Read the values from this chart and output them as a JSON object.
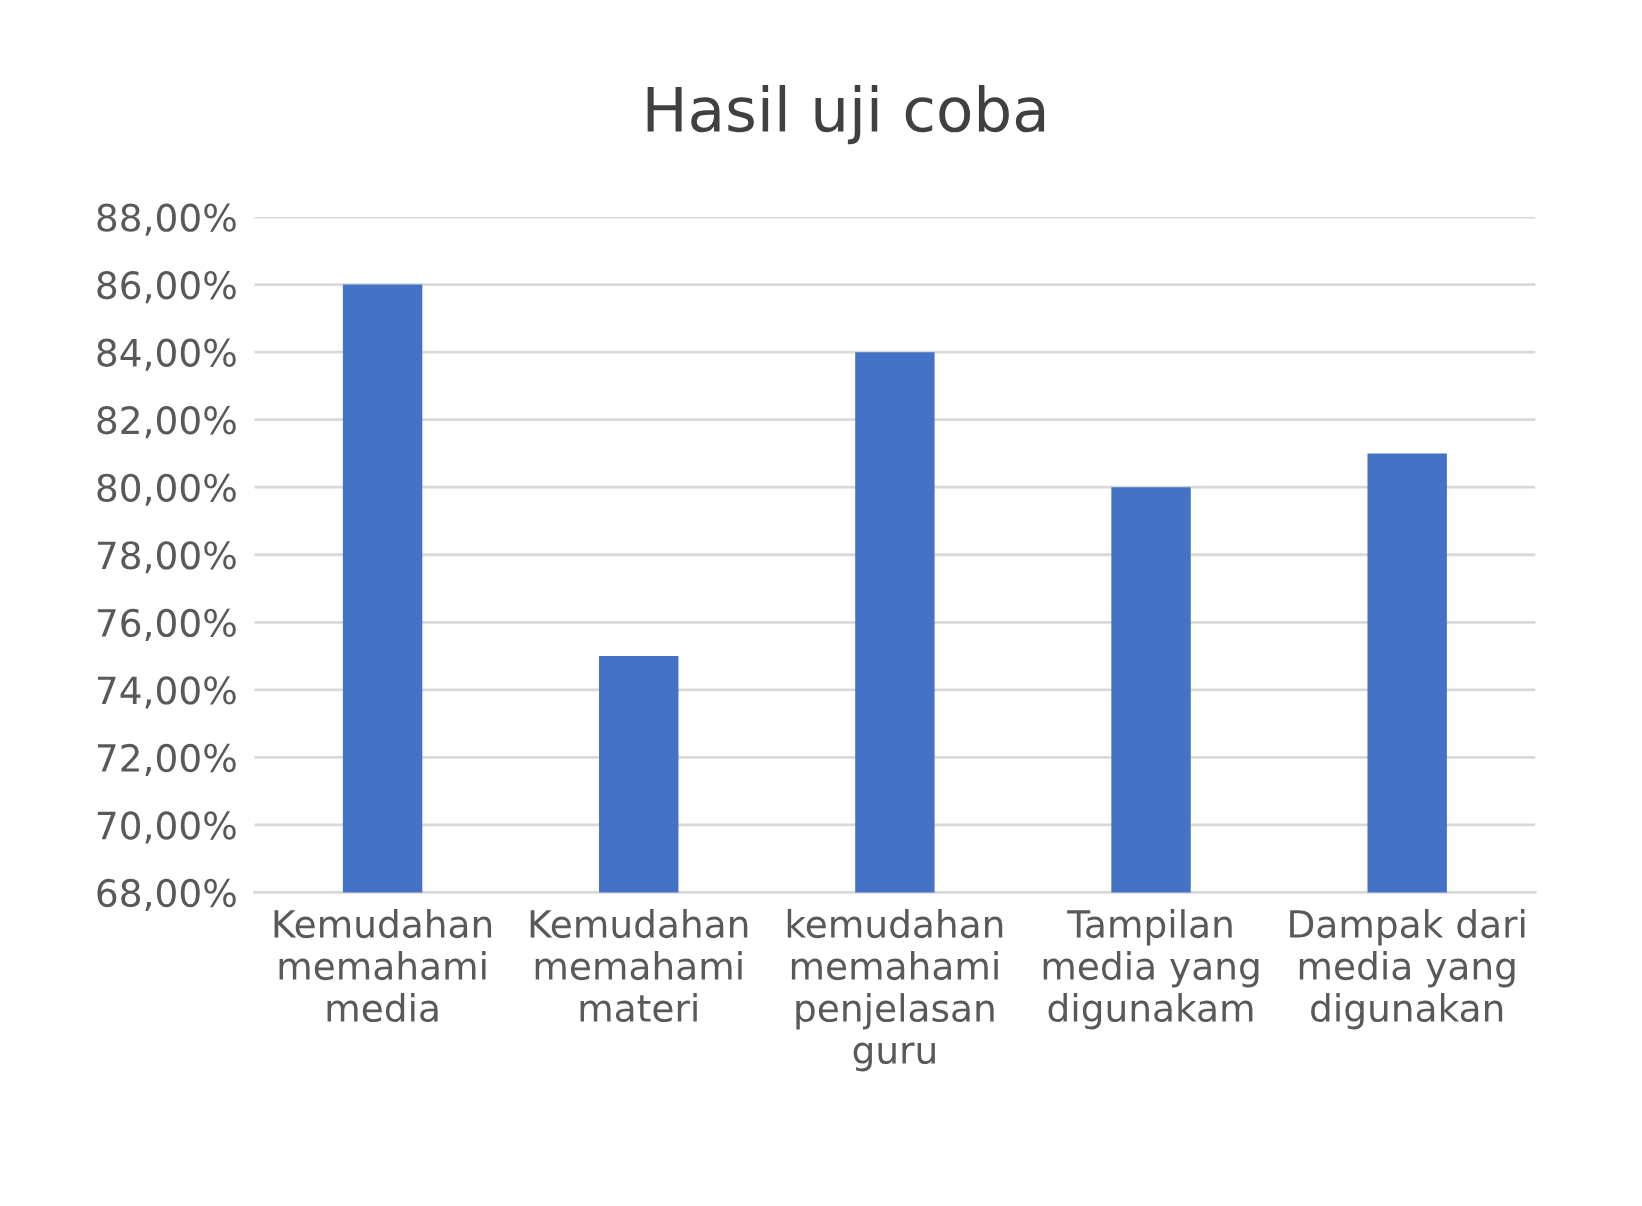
{
  "chart_data": {
    "type": "bar",
    "title": "Hasil uji coba",
    "categories": [
      "Kemudahan memahami media",
      "Kemudahan memahami materi",
      "kemudahan memahami penjelasan guru",
      "Tampilan media yang digunakam",
      "Dampak dari media yang digunakan"
    ],
    "values": [
      86,
      75,
      84,
      80,
      81
    ],
    "color": "#4472c4",
    "ylim": [
      68,
      88
    ],
    "yticks": [
      {
        "value": 68,
        "label": "68,00%"
      },
      {
        "value": 70,
        "label": "70,00%"
      },
      {
        "value": 72,
        "label": "72,00%"
      },
      {
        "value": 74,
        "label": "74,00%"
      },
      {
        "value": 76,
        "label": "76,00%"
      },
      {
        "value": 78,
        "label": "78,00%"
      },
      {
        "value": 80,
        "label": "80,00%"
      },
      {
        "value": 82,
        "label": "82,00%"
      },
      {
        "value": 84,
        "label": "84,00%"
      },
      {
        "value": 86,
        "label": "86,00%"
      },
      {
        "value": 88,
        "label": "88,00%"
      }
    ],
    "grid": "y"
  }
}
